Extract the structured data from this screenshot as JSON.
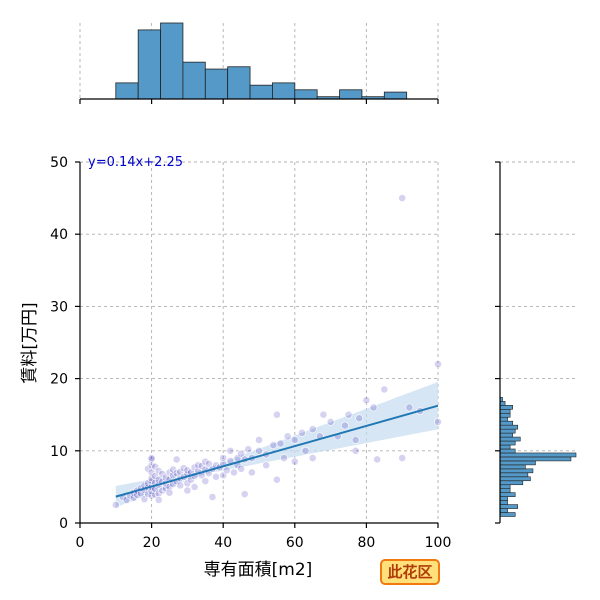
{
  "chart_data": {
    "type": "scatter",
    "xlabel": "専有面積[m2]",
    "ylabel": "賃料[万円]",
    "xlim": [
      0,
      100
    ],
    "ylim": [
      0,
      50
    ],
    "x_ticks": [
      0,
      20,
      40,
      60,
      80,
      100
    ],
    "y_ticks": [
      0,
      10,
      20,
      30,
      40,
      50
    ],
    "grid": true,
    "annotation": "y=0.14x+2.25",
    "regression": {
      "slope": 0.14,
      "intercept": 2.25,
      "x_range": [
        10,
        100
      ]
    },
    "badge": "此花区",
    "colors": {
      "points": "#1a0dab",
      "line": "#1f77b4",
      "histogram": "#5499c7",
      "band": "#c6dbef"
    },
    "points": [
      [
        10,
        2.5
      ],
      [
        12,
        3.6
      ],
      [
        13,
        3.2
      ],
      [
        14,
        3.8
      ],
      [
        15,
        3.5
      ],
      [
        15,
        4.2
      ],
      [
        16,
        4.5
      ],
      [
        16,
        3.9
      ],
      [
        17,
        4.1
      ],
      [
        17,
        4.8
      ],
      [
        18,
        3.3
      ],
      [
        18,
        4.6
      ],
      [
        18,
        5.2
      ],
      [
        19,
        4.0
      ],
      [
        19,
        4.9
      ],
      [
        19,
        5.5
      ],
      [
        19,
        7.5
      ],
      [
        20,
        3.8
      ],
      [
        20,
        4.4
      ],
      [
        20,
        5.0
      ],
      [
        20,
        5.8
      ],
      [
        20,
        6.2
      ],
      [
        20,
        7.0
      ],
      [
        20,
        8.0
      ],
      [
        20,
        8.8
      ],
      [
        20,
        9.0
      ],
      [
        21,
        3.9
      ],
      [
        21,
        4.7
      ],
      [
        21,
        5.6
      ],
      [
        21,
        6.5
      ],
      [
        21,
        7.8
      ],
      [
        22,
        4.1
      ],
      [
        22,
        5.3
      ],
      [
        22,
        6.0
      ],
      [
        22,
        7.2
      ],
      [
        22,
        3.2
      ],
      [
        23,
        4.5
      ],
      [
        23,
        5.7
      ],
      [
        23,
        6.8
      ],
      [
        24,
        4.8
      ],
      [
        24,
        5.5
      ],
      [
        24,
        6.3
      ],
      [
        25,
        5.0
      ],
      [
        25,
        6.0
      ],
      [
        25,
        7.0
      ],
      [
        25,
        4.2
      ],
      [
        26,
        5.4
      ],
      [
        26,
        6.6
      ],
      [
        26,
        7.4
      ],
      [
        27,
        5.8
      ],
      [
        27,
        6.9
      ],
      [
        27,
        8.8
      ],
      [
        28,
        5.2
      ],
      [
        28,
        6.2
      ],
      [
        28,
        7.1
      ],
      [
        29,
        6.4
      ],
      [
        29,
        7.6
      ],
      [
        30,
        5.5
      ],
      [
        30,
        6.8
      ],
      [
        30,
        7.3
      ],
      [
        30,
        4.5
      ],
      [
        31,
        6.0
      ],
      [
        31,
        7.0
      ],
      [
        32,
        6.5
      ],
      [
        32,
        7.7
      ],
      [
        32,
        5.0
      ],
      [
        33,
        7.2
      ],
      [
        33,
        8.0
      ],
      [
        34,
        6.6
      ],
      [
        34,
        7.9
      ],
      [
        35,
        7.4
      ],
      [
        35,
        8.5
      ],
      [
        35,
        5.8
      ],
      [
        36,
        6.9
      ],
      [
        36,
        8.2
      ],
      [
        37,
        7.5
      ],
      [
        37,
        3.6
      ],
      [
        38,
        8.0
      ],
      [
        38,
        6.4
      ],
      [
        39,
        7.7
      ],
      [
        40,
        8.2
      ],
      [
        40,
        9.0
      ],
      [
        40,
        6.6
      ],
      [
        41,
        7.3
      ],
      [
        42,
        8.6
      ],
      [
        42,
        10.0
      ],
      [
        43,
        7.0
      ],
      [
        44,
        9.0
      ],
      [
        44,
        8.0
      ],
      [
        45,
        7.5
      ],
      [
        45,
        9.6
      ],
      [
        46,
        8.8
      ],
      [
        46,
        4.0
      ],
      [
        47,
        10.2
      ],
      [
        48,
        9.0
      ],
      [
        48,
        7.0
      ],
      [
        50,
        10.0
      ],
      [
        50,
        11.5
      ],
      [
        52,
        9.5
      ],
      [
        52,
        8.0
      ],
      [
        54,
        10.8
      ],
      [
        55,
        6.0
      ],
      [
        55,
        15.0
      ],
      [
        56,
        11.0
      ],
      [
        57,
        9.0
      ],
      [
        58,
        12.0
      ],
      [
        60,
        11.5
      ],
      [
        60,
        8.5
      ],
      [
        62,
        12.5
      ],
      [
        63,
        10.0
      ],
      [
        65,
        13.0
      ],
      [
        65,
        9.0
      ],
      [
        67,
        12.0
      ],
      [
        68,
        15.0
      ],
      [
        70,
        14.0
      ],
      [
        72,
        12.0
      ],
      [
        74,
        13.5
      ],
      [
        75,
        15.0
      ],
      [
        77,
        11.5
      ],
      [
        77,
        10.0
      ],
      [
        78,
        14.5
      ],
      [
        80,
        17.0
      ],
      [
        82,
        16.0
      ],
      [
        83,
        8.8
      ],
      [
        85,
        18.5
      ],
      [
        90,
        45.0
      ],
      [
        90,
        9.0
      ],
      [
        92,
        16.0
      ],
      [
        95,
        15.5
      ],
      [
        100,
        22.0
      ],
      [
        100,
        14.0
      ]
    ],
    "top_histogram": {
      "bin_start": 10,
      "bin_width": 6.25,
      "counts": [
        7,
        30,
        33,
        16,
        13,
        14,
        6,
        7,
        4,
        1,
        4,
        1,
        3,
        0
      ]
    },
    "right_histogram": {
      "bin_start": 0.9,
      "bin_width": 0.55,
      "counts": [
        6,
        3,
        7,
        3,
        3,
        6,
        4,
        4,
        9,
        12,
        11,
        13,
        10,
        14,
        28,
        30,
        6,
        4,
        6,
        8,
        5,
        6,
        7,
        5,
        3,
        4,
        4,
        5,
        2,
        1
      ]
    }
  }
}
